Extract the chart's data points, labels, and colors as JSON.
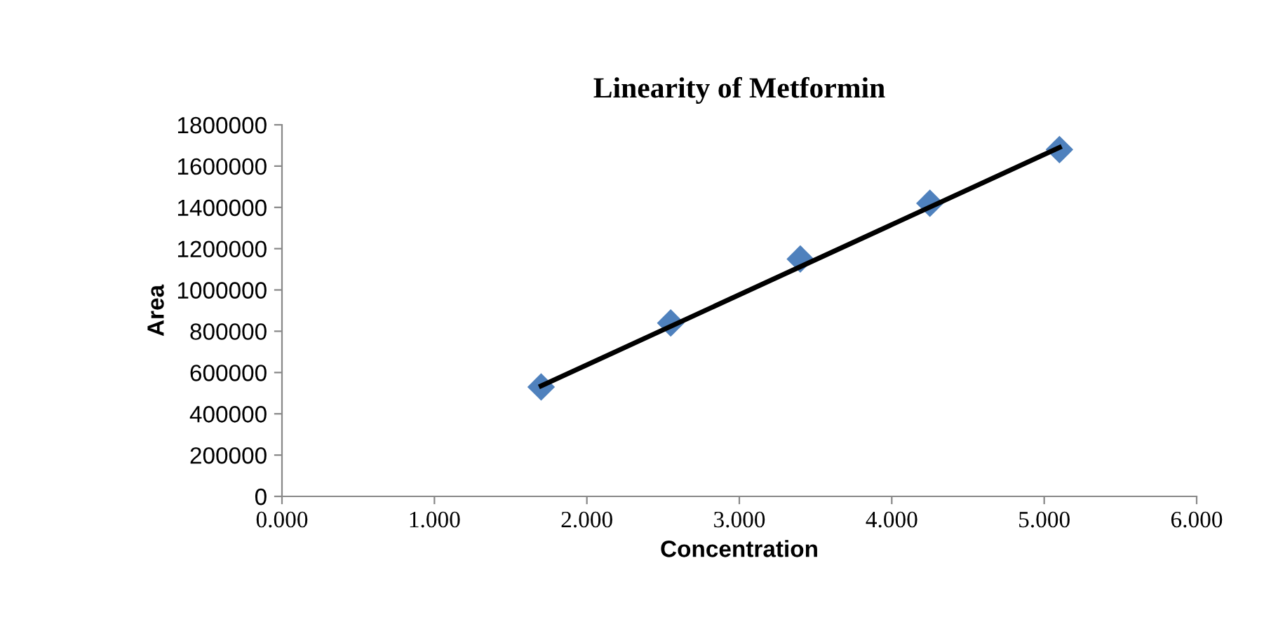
{
  "chart_data": {
    "type": "scatter",
    "title": "Linearity of Metformin",
    "xlabel": "Concentration",
    "ylabel": "Area",
    "xlim": [
      0,
      6
    ],
    "xticks": [
      {
        "value": 0,
        "label": "0.000"
      },
      {
        "value": 1,
        "label": "1.000"
      },
      {
        "value": 2,
        "label": "2.000"
      },
      {
        "value": 3,
        "label": "3.000"
      },
      {
        "value": 4,
        "label": "4.000"
      },
      {
        "value": 5,
        "label": "5.000"
      },
      {
        "value": 6,
        "label": "6.000"
      }
    ],
    "ylim": [
      0,
      1800000
    ],
    "yticks": [
      0,
      200000,
      400000,
      600000,
      800000,
      1000000,
      1200000,
      1400000,
      1600000,
      1800000
    ],
    "grid": false,
    "legend": false,
    "series": [
      {
        "marker": "diamond",
        "color": "#4f81bd",
        "x": [
          1.7,
          2.55,
          3.4,
          4.25,
          5.1
        ],
        "values": [
          530000,
          840000,
          1150000,
          1420000,
          1680000
        ]
      },
      {
        "type": "line",
        "marker": "none",
        "color": "#000000",
        "line_style": "solid",
        "x": [
          1.7,
          5.1
        ],
        "values": [
          535000,
          1690000
        ]
      }
    ]
  }
}
